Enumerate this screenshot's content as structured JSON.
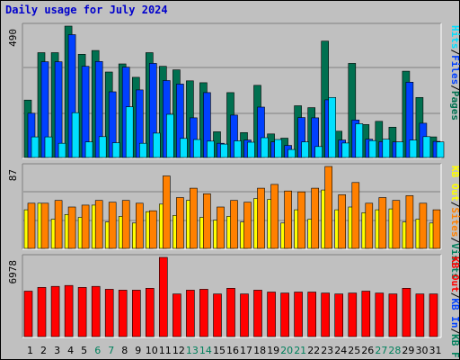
{
  "title": "Daily usage for July 2024",
  "colors": {
    "background": "#c0c0c0",
    "hits": "#007050",
    "files": "#0040ff",
    "pages": "#00e0ff",
    "visits": "#ffff00",
    "sites": "#ff8000",
    "kbytes": "#ff0000",
    "title": "#0000cc",
    "weekend": "#00805c"
  },
  "chart_data": [
    {
      "type": "bar",
      "name_parts": [
        "Pages",
        "/",
        "Files",
        "/",
        "Hits"
      ],
      "scale_label": "490",
      "ylim": [
        0,
        490
      ],
      "categories": [
        "1",
        "2",
        "3",
        "4",
        "5",
        "6",
        "7",
        "8",
        "9",
        "10",
        "11",
        "12",
        "13",
        "14",
        "15",
        "16",
        "17",
        "18",
        "19",
        "20",
        "21",
        "22",
        "23",
        "24",
        "25",
        "26",
        "27",
        "28",
        "29",
        "30",
        "31"
      ],
      "weekend_days": [
        6,
        7,
        13,
        14,
        20,
        21,
        27,
        28
      ],
      "grid": true,
      "series": [
        {
          "name": "Hits",
          "values": [
            214,
            391,
            391,
            490,
            385,
            399,
            319,
            349,
            299,
            391,
            340,
            327,
            286,
            279,
            96,
            242,
            93,
            269,
            88,
            72,
            193,
            186,
            434,
            98,
            351,
            123,
            135,
            113,
            322,
            224,
            77
          ]
        },
        {
          "name": "Files",
          "values": [
            165,
            357,
            357,
            458,
            340,
            358,
            245,
            337,
            252,
            351,
            287,
            274,
            148,
            242,
            53,
            158,
            65,
            188,
            58,
            45,
            149,
            148,
            215,
            65,
            140,
            68,
            59,
            58,
            281,
            128,
            60
          ]
        },
        {
          "name": "Pages",
          "values": [
            77,
            77,
            53,
            167,
            58,
            78,
            55,
            189,
            53,
            91,
            161,
            71,
            67,
            61,
            50,
            62,
            57,
            74,
            67,
            30,
            58,
            41,
            224,
            54,
            126,
            63,
            68,
            58,
            65,
            78,
            58
          ]
        }
      ]
    },
    {
      "type": "bar",
      "name_parts": [
        "Visits",
        "/",
        "Sites",
        "/",
        "KB Out"
      ],
      "scale_label": "87",
      "ylim": [
        0,
        87
      ],
      "categories": [
        "1",
        "2",
        "3",
        "4",
        "5",
        "6",
        "7",
        "8",
        "9",
        "10",
        "11",
        "12",
        "13",
        "14",
        "15",
        "16",
        "17",
        "18",
        "19",
        "20",
        "21",
        "22",
        "23",
        "24",
        "25",
        "26",
        "27",
        "28",
        "29",
        "30",
        "31"
      ],
      "grid": true,
      "series": [
        {
          "name": "Visits",
          "values": [
            41,
            48,
            31,
            36,
            33,
            46,
            28,
            34,
            27,
            39,
            47,
            35,
            51,
            33,
            30,
            34,
            28,
            53,
            52,
            27,
            41,
            31,
            62,
            41,
            44,
            38,
            41,
            42,
            28,
            31,
            27
          ]
        },
        {
          "name": "Sites",
          "values": [
            48,
            48,
            51,
            44,
            46,
            51,
            49,
            51,
            48,
            40,
            77,
            54,
            64,
            58,
            44,
            51,
            49,
            64,
            68,
            61,
            60,
            64,
            87,
            57,
            70,
            48,
            54,
            51,
            56,
            48,
            41
          ]
        }
      ]
    },
    {
      "type": "bar",
      "name_parts": [
        "KB F",
        "/",
        "KB In",
        "/",
        "KB Out"
      ],
      "scale_label": "6978",
      "ylim": [
        0,
        6978
      ],
      "categories": [
        "1",
        "2",
        "3",
        "4",
        "5",
        "6",
        "7",
        "8",
        "9",
        "10",
        "11",
        "12",
        "13",
        "14",
        "15",
        "16",
        "17",
        "18",
        "19",
        "20",
        "21",
        "22",
        "23",
        "24",
        "25",
        "26",
        "27",
        "28",
        "29",
        "30",
        "31"
      ],
      "grid": true,
      "series": [
        {
          "name": "KB F",
          "values": [
            4006,
            4338,
            4422,
            4505,
            4338,
            4422,
            4172,
            4088,
            4088,
            4255,
            6978,
            3756,
            4088,
            4172,
            3756,
            4255,
            3756,
            4088,
            3922,
            3839,
            3922,
            3922,
            3839,
            3756,
            3839,
            4006,
            3839,
            3756,
            4255,
            3756,
            3756
          ]
        }
      ]
    }
  ]
}
